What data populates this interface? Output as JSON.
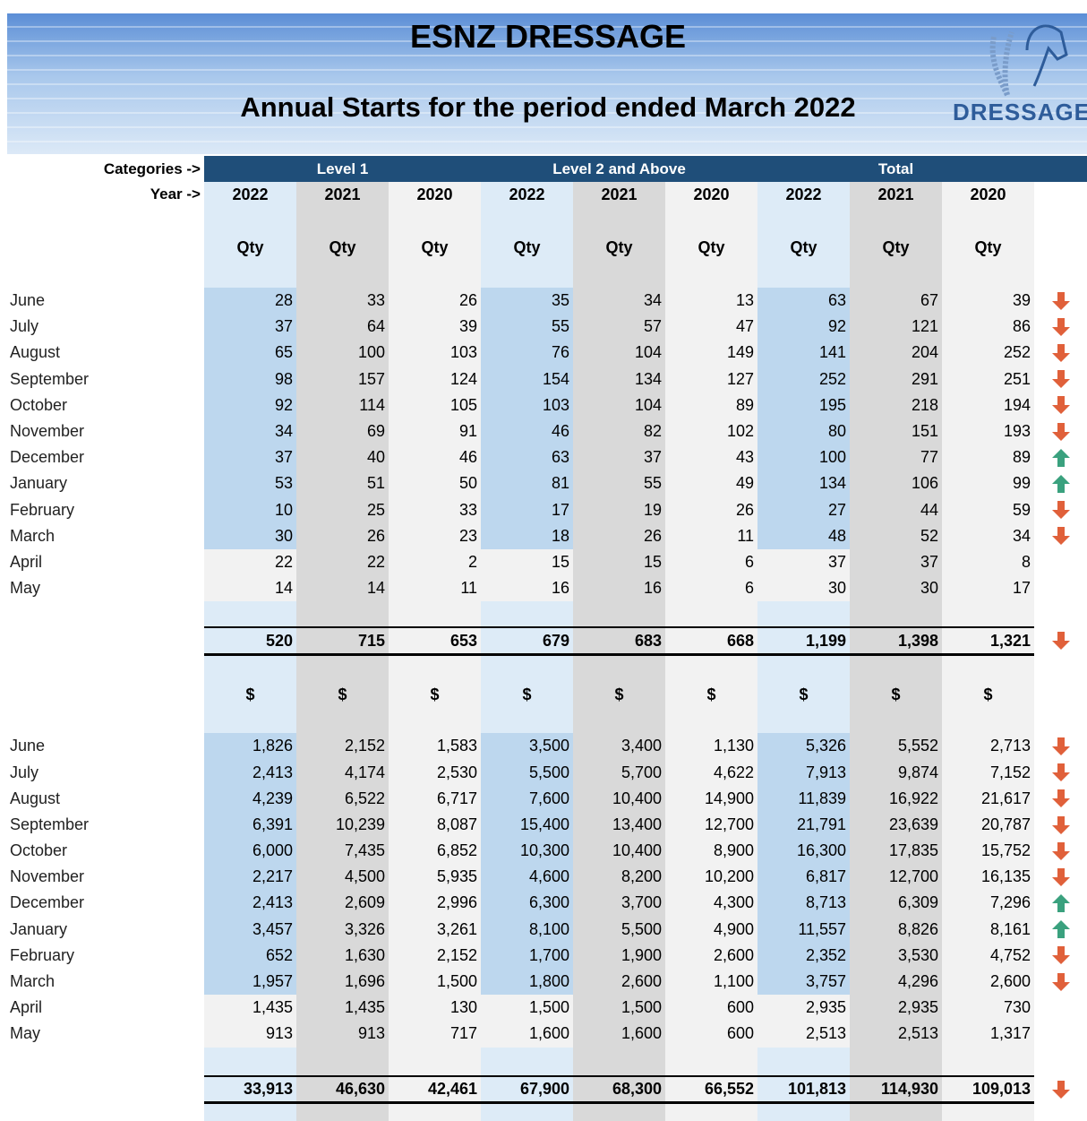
{
  "header": {
    "title": "ESNZ DRESSAGE",
    "subtitle": "Annual Starts for the period ended March 2022",
    "logo": "DRESSAGE"
  },
  "table": {
    "categories_label": "Categories ->",
    "year_label": "Year ->",
    "groups": [
      "Level 1",
      "Level 2 and Above",
      "Total"
    ],
    "years": [
      "2022",
      "2021",
      "2020"
    ],
    "qty": {
      "unit": "Qty",
      "rows": [
        {
          "month": "June",
          "values": [
            "28",
            "33",
            "26",
            "35",
            "34",
            "13",
            "63",
            "67",
            "39"
          ],
          "trend": "down"
        },
        {
          "month": "July",
          "values": [
            "37",
            "64",
            "39",
            "55",
            "57",
            "47",
            "92",
            "121",
            "86"
          ],
          "trend": "down"
        },
        {
          "month": "August",
          "values": [
            "65",
            "100",
            "103",
            "76",
            "104",
            "149",
            "141",
            "204",
            "252"
          ],
          "trend": "down"
        },
        {
          "month": "September",
          "values": [
            "98",
            "157",
            "124",
            "154",
            "134",
            "127",
            "252",
            "291",
            "251"
          ],
          "trend": "down"
        },
        {
          "month": "October",
          "values": [
            "92",
            "114",
            "105",
            "103",
            "104",
            "89",
            "195",
            "218",
            "194"
          ],
          "trend": "down"
        },
        {
          "month": "November",
          "values": [
            "34",
            "69",
            "91",
            "46",
            "82",
            "102",
            "80",
            "151",
            "193"
          ],
          "trend": "down"
        },
        {
          "month": "December",
          "values": [
            "37",
            "40",
            "46",
            "63",
            "37",
            "43",
            "100",
            "77",
            "89"
          ],
          "trend": "up"
        },
        {
          "month": "January",
          "values": [
            "53",
            "51",
            "50",
            "81",
            "55",
            "49",
            "134",
            "106",
            "99"
          ],
          "trend": "up"
        },
        {
          "month": "February",
          "values": [
            "10",
            "25",
            "33",
            "17",
            "19",
            "26",
            "27",
            "44",
            "59"
          ],
          "trend": "down"
        },
        {
          "month": "March",
          "values": [
            "30",
            "26",
            "23",
            "18",
            "26",
            "11",
            "48",
            "52",
            "34"
          ],
          "trend": "down"
        },
        {
          "month": "April",
          "values": [
            "22",
            "22",
            "2",
            "15",
            "15",
            "6",
            "37",
            "37",
            "8"
          ],
          "trend": null
        },
        {
          "month": "May",
          "values": [
            "14",
            "14",
            "11",
            "16",
            "16",
            "6",
            "30",
            "30",
            "17"
          ],
          "trend": null
        }
      ],
      "total": {
        "values": [
          "520",
          "715",
          "653",
          "679",
          "683",
          "668",
          "1,199",
          "1,398",
          "1,321"
        ],
        "trend": "down"
      }
    },
    "dollars": {
      "unit": "$",
      "rows": [
        {
          "month": "June",
          "values": [
            "1,826",
            "2,152",
            "1,583",
            "3,500",
            "3,400",
            "1,130",
            "5,326",
            "5,552",
            "2,713"
          ],
          "trend": "down"
        },
        {
          "month": "July",
          "values": [
            "2,413",
            "4,174",
            "2,530",
            "5,500",
            "5,700",
            "4,622",
            "7,913",
            "9,874",
            "7,152"
          ],
          "trend": "down"
        },
        {
          "month": "August",
          "values": [
            "4,239",
            "6,522",
            "6,717",
            "7,600",
            "10,400",
            "14,900",
            "11,839",
            "16,922",
            "21,617"
          ],
          "trend": "down"
        },
        {
          "month": "September",
          "values": [
            "6,391",
            "10,239",
            "8,087",
            "15,400",
            "13,400",
            "12,700",
            "21,791",
            "23,639",
            "20,787"
          ],
          "trend": "down"
        },
        {
          "month": "October",
          "values": [
            "6,000",
            "7,435",
            "6,852",
            "10,300",
            "10,400",
            "8,900",
            "16,300",
            "17,835",
            "15,752"
          ],
          "trend": "down"
        },
        {
          "month": "November",
          "values": [
            "2,217",
            "4,500",
            "5,935",
            "4,600",
            "8,200",
            "10,200",
            "6,817",
            "12,700",
            "16,135"
          ],
          "trend": "down"
        },
        {
          "month": "December",
          "values": [
            "2,413",
            "2,609",
            "2,996",
            "6,300",
            "3,700",
            "4,300",
            "8,713",
            "6,309",
            "7,296"
          ],
          "trend": "up"
        },
        {
          "month": "January",
          "values": [
            "3,457",
            "3,326",
            "3,261",
            "8,100",
            "5,500",
            "4,900",
            "11,557",
            "8,826",
            "8,161"
          ],
          "trend": "up"
        },
        {
          "month": "February",
          "values": [
            "652",
            "1,630",
            "2,152",
            "1,700",
            "1,900",
            "2,600",
            "2,352",
            "3,530",
            "4,752"
          ],
          "trend": "down"
        },
        {
          "month": "March",
          "values": [
            "1,957",
            "1,696",
            "1,500",
            "1,800",
            "2,600",
            "1,100",
            "3,757",
            "4,296",
            "2,600"
          ],
          "trend": "down"
        },
        {
          "month": "April",
          "values": [
            "1,435",
            "1,435",
            "130",
            "1,500",
            "1,500",
            "600",
            "2,935",
            "2,935",
            "730"
          ],
          "trend": null
        },
        {
          "month": "May",
          "values": [
            "913",
            "913",
            "717",
            "1,600",
            "1,600",
            "600",
            "2,513",
            "2,513",
            "1,317"
          ],
          "trend": null
        }
      ],
      "total": {
        "values": [
          "33,913",
          "46,630",
          "42,461",
          "67,900",
          "68,300",
          "66,552",
          "101,813",
          "114,930",
          "109,013"
        ],
        "trend": "down"
      }
    }
  }
}
